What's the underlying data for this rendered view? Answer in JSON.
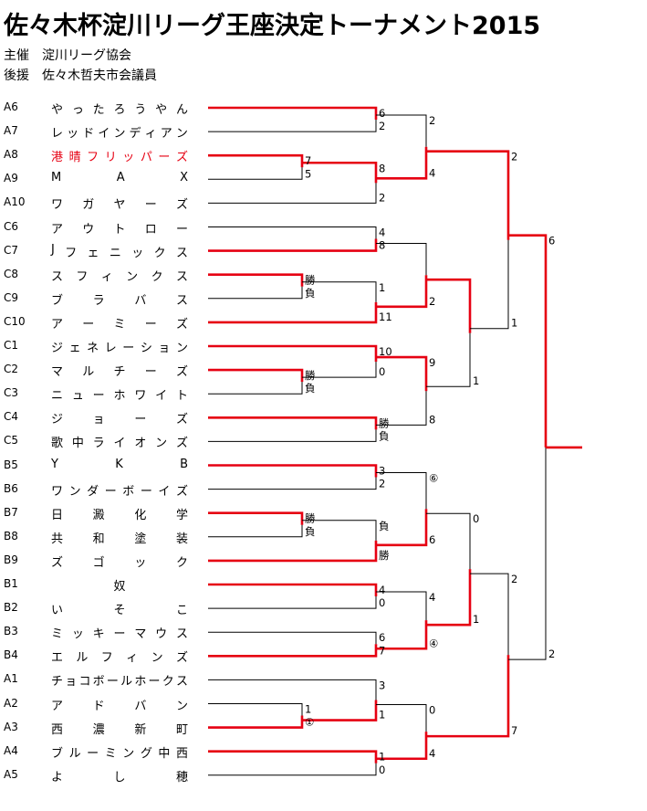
{
  "title": "佐々木杯淀川リーグ王座決定トーナメント2015",
  "organizer": {
    "label": "主催",
    "value": "淀川リーグ協会"
  },
  "sponsor": {
    "label": "後援",
    "value": "佐々木哲夫市会議員"
  },
  "colors": {
    "win": "#e60012",
    "line": "#000000"
  },
  "teams": [
    {
      "seed": "A6",
      "name": "やったろうやん"
    },
    {
      "seed": "A7",
      "name": "レッドインディアン"
    },
    {
      "seed": "A8",
      "name": "港晴フリッパーズ",
      "highlight": true
    },
    {
      "seed": "A9",
      "name": "M　A　X"
    },
    {
      "seed": "A10",
      "name": "ワガヤーズ"
    },
    {
      "seed": "C6",
      "name": "アウトロー"
    },
    {
      "seed": "C7",
      "name": "Jフェニックス"
    },
    {
      "seed": "C8",
      "name": "スフィンクス"
    },
    {
      "seed": "C9",
      "name": "ブラバス"
    },
    {
      "seed": "C10",
      "name": "アーミーズ"
    },
    {
      "seed": "C1",
      "name": "ジェネレーション"
    },
    {
      "seed": "C2",
      "name": "マルチーズ"
    },
    {
      "seed": "C3",
      "name": "ニューホワイト"
    },
    {
      "seed": "C4",
      "name": "ジョーズ"
    },
    {
      "seed": "C5",
      "name": "歌中ライオンズ"
    },
    {
      "seed": "B5",
      "name": "Y　K　B"
    },
    {
      "seed": "B6",
      "name": "ワンダーボーイズ"
    },
    {
      "seed": "B7",
      "name": "日澱化学"
    },
    {
      "seed": "B8",
      "name": "共和塗装"
    },
    {
      "seed": "B9",
      "name": "ズゴック"
    },
    {
      "seed": "B1",
      "name": "奴"
    },
    {
      "seed": "B2",
      "name": "いそこ"
    },
    {
      "seed": "B3",
      "name": "ミッキーマウス"
    },
    {
      "seed": "B4",
      "name": "エルフィンズ"
    },
    {
      "seed": "A1",
      "name": "チョコボールホークス"
    },
    {
      "seed": "A2",
      "name": "アドバン"
    },
    {
      "seed": "A3",
      "name": "西濃新町"
    },
    {
      "seed": "A4",
      "name": "ブルーミング中西"
    },
    {
      "seed": "A5",
      "name": "よし穂"
    }
  ],
  "scores": {
    "m_A6_A7": [
      "6",
      "2"
    ],
    "m_A8_A9": [
      "7",
      "5"
    ],
    "m_A8w_A10": [
      "8",
      "2"
    ],
    "m_A6w_A8w": [
      "2",
      "4"
    ],
    "m_C6_C7": [
      "4",
      "8"
    ],
    "m_C8_C9": [
      "勝",
      "負"
    ],
    "m_C8w_C10": [
      "1",
      "11"
    ],
    "m_C7w_C10w": [
      "",
      "2"
    ],
    "m_C2_C3": [
      "勝",
      "負"
    ],
    "m_C1_C2w": [
      "10",
      "0"
    ],
    "m_C4_C5": [
      "勝",
      "負"
    ],
    "m_C1w_C4w": [
      "9",
      "8"
    ],
    "m_C10w_C4w": [
      "",
      "1"
    ],
    "m_A8w_C4w": [
      "2",
      "1"
    ],
    "m_B5_B6": [
      "3",
      "2"
    ],
    "m_B7_B8": [
      "勝",
      "負"
    ],
    "m_B7w_B9": [
      "負",
      "勝"
    ],
    "m_B5w_B9w": [
      "⑥",
      "6"
    ],
    "m_B1_B2": [
      "4",
      "0"
    ],
    "m_B3_B4": [
      "6",
      "7"
    ],
    "m_B1w_B4w": [
      "4",
      "④"
    ],
    "m_B9w_B1w": [
      "0",
      "1"
    ],
    "m_A2_A3": [
      "1",
      "①"
    ],
    "m_A1_A3w": [
      "3",
      "1"
    ],
    "m_A4_A5": [
      "1",
      "0"
    ],
    "m_A3w_A4w": [
      "0",
      "4"
    ],
    "m_B1w_A4w": [
      "2",
      "7"
    ],
    "semi_final": [
      "6",
      "2"
    ]
  }
}
